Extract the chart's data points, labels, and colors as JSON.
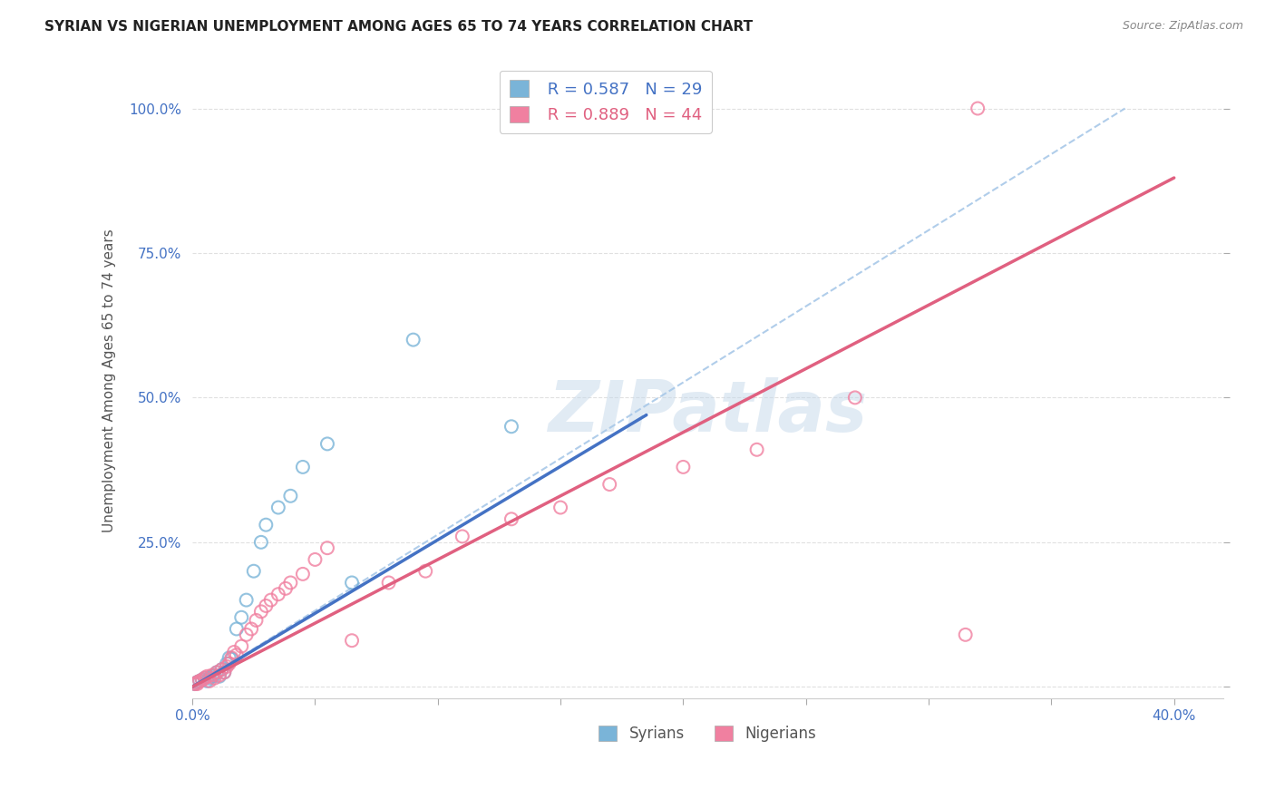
{
  "title": "SYRIAN VS NIGERIAN UNEMPLOYMENT AMONG AGES 65 TO 74 YEARS CORRELATION CHART",
  "source": "Source: ZipAtlas.com",
  "ylabel": "Unemployment Among Ages 65 to 74 years",
  "xlim": [
    0.0,
    0.42
  ],
  "ylim": [
    -0.02,
    1.08
  ],
  "syrian_color": "#7ab4d8",
  "nigerian_color": "#f080a0",
  "diagonal_color": "#a8c8e8",
  "syrian_line_color": "#4472c4",
  "nigerian_line_color": "#e06080",
  "legend_syrian_R": "0.587",
  "legend_syrian_N": "29",
  "legend_nigerian_R": "0.889",
  "legend_nigerian_N": "44",
  "watermark": "ZIPatlas",
  "syrian_scatter_x": [
    0.001,
    0.002,
    0.003,
    0.004,
    0.005,
    0.006,
    0.007,
    0.008,
    0.009,
    0.01,
    0.011,
    0.012,
    0.013,
    0.014,
    0.015,
    0.016,
    0.018,
    0.02,
    0.022,
    0.025,
    0.028,
    0.03,
    0.035,
    0.04,
    0.045,
    0.055,
    0.065,
    0.09,
    0.13
  ],
  "syrian_scatter_y": [
    0.005,
    0.008,
    0.01,
    0.012,
    0.015,
    0.01,
    0.015,
    0.018,
    0.02,
    0.025,
    0.018,
    0.03,
    0.025,
    0.04,
    0.05,
    0.048,
    0.1,
    0.12,
    0.15,
    0.2,
    0.25,
    0.28,
    0.31,
    0.33,
    0.38,
    0.42,
    0.18,
    0.6,
    0.45
  ],
  "nigerian_scatter_x": [
    0.001,
    0.002,
    0.002,
    0.003,
    0.004,
    0.005,
    0.006,
    0.007,
    0.008,
    0.009,
    0.01,
    0.011,
    0.012,
    0.013,
    0.014,
    0.015,
    0.016,
    0.017,
    0.018,
    0.02,
    0.022,
    0.024,
    0.026,
    0.028,
    0.03,
    0.032,
    0.035,
    0.038,
    0.04,
    0.045,
    0.05,
    0.055,
    0.065,
    0.08,
    0.095,
    0.11,
    0.13,
    0.15,
    0.17,
    0.2,
    0.23,
    0.27,
    0.315,
    0.32
  ],
  "nigerian_scatter_y": [
    0.005,
    0.005,
    0.008,
    0.01,
    0.012,
    0.015,
    0.018,
    0.01,
    0.02,
    0.015,
    0.025,
    0.02,
    0.03,
    0.025,
    0.035,
    0.04,
    0.05,
    0.06,
    0.055,
    0.07,
    0.09,
    0.1,
    0.115,
    0.13,
    0.14,
    0.15,
    0.16,
    0.17,
    0.18,
    0.195,
    0.22,
    0.24,
    0.08,
    0.18,
    0.2,
    0.26,
    0.29,
    0.31,
    0.35,
    0.38,
    0.41,
    0.5,
    0.09,
    1.0
  ],
  "syrian_line_x": [
    0.0,
    0.185
  ],
  "syrian_line_y": [
    0.0,
    0.47
  ],
  "nigerian_line_x": [
    0.0,
    0.4
  ],
  "nigerian_line_y": [
    0.0,
    0.88
  ],
  "diagonal_line_x": [
    0.0,
    0.38
  ],
  "diagonal_line_y": [
    0.0,
    1.0
  ],
  "x_ticks": [
    0.0,
    0.05,
    0.1,
    0.15,
    0.2,
    0.25,
    0.3,
    0.35,
    0.4
  ],
  "x_tick_labels": [
    "0.0%",
    "",
    "",
    "",
    "",
    "",
    "",
    "",
    "40.0%"
  ],
  "y_ticks": [
    0.0,
    0.25,
    0.5,
    0.75,
    1.0
  ],
  "y_tick_labels": [
    "",
    "25.0%",
    "50.0%",
    "75.0%",
    "100.0%"
  ],
  "grid_color": "#e0e0e0",
  "background_color": "#ffffff"
}
